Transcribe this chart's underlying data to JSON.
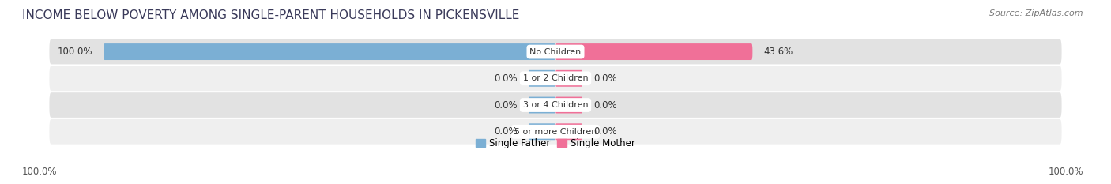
{
  "title": "INCOME BELOW POVERTY AMONG SINGLE-PARENT HOUSEHOLDS IN PICKENSVILLE",
  "source": "Source: ZipAtlas.com",
  "categories": [
    "No Children",
    "1 or 2 Children",
    "3 or 4 Children",
    "5 or more Children"
  ],
  "single_father": [
    100.0,
    0.0,
    0.0,
    0.0
  ],
  "single_mother": [
    43.6,
    0.0,
    0.0,
    0.0
  ],
  "father_color": "#7bafd4",
  "mother_color": "#f07098",
  "row_bg_light": "#efefef",
  "row_bg_dark": "#e2e2e2",
  "max_val": 100.0,
  "axis_label_left": "100.0%",
  "axis_label_right": "100.0%",
  "legend_labels": [
    "Single Father",
    "Single Mother"
  ],
  "legend_colors": [
    "#7bafd4",
    "#f07098"
  ],
  "title_fontsize": 11,
  "source_fontsize": 8,
  "label_fontsize": 8.5,
  "category_fontsize": 8,
  "tick_fontsize": 8.5,
  "small_bar_width": 6.0
}
